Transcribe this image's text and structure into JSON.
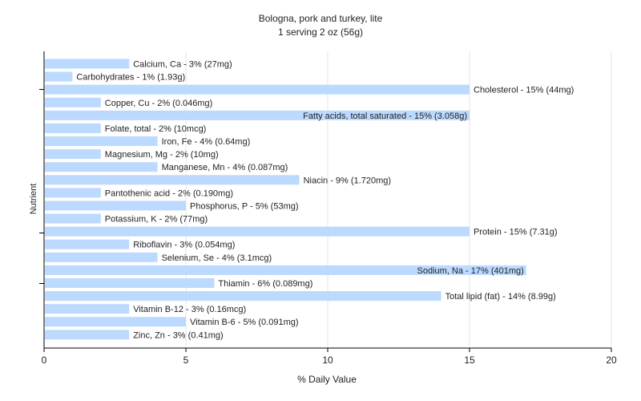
{
  "colors": {
    "bar": "#bcd9ff",
    "grid": "#e6e6e6",
    "axis": "#000000",
    "text": "#222222"
  },
  "chart_data": {
    "type": "bar",
    "orientation": "horizontal",
    "title": "Bologna, pork and turkey, lite",
    "subtitle": "1 serving 2 oz (56g)",
    "xlabel": "% Daily Value",
    "ylabel": "Nutrient",
    "xlim": [
      0,
      20
    ],
    "xticks": [
      0,
      5,
      10,
      15,
      20
    ],
    "grid": true,
    "categories": [
      "Calcium, Ca",
      "Carbohydrates",
      "Cholesterol",
      "Copper, Cu",
      "Fatty acids, total saturated",
      "Folate, total",
      "Iron, Fe",
      "Magnesium, Mg",
      "Manganese, Mn",
      "Niacin",
      "Pantothenic acid",
      "Phosphorus, P",
      "Potassium, K",
      "Protein",
      "Riboflavin",
      "Selenium, Se",
      "Sodium, Na",
      "Thiamin",
      "Total lipid (fat)",
      "Vitamin B-12",
      "Vitamin B-6",
      "Zinc, Zn"
    ],
    "values": [
      3,
      1,
      15,
      2,
      15,
      2,
      4,
      2,
      4,
      9,
      2,
      5,
      2,
      15,
      3,
      4,
      17,
      6,
      14,
      3,
      5,
      3
    ],
    "labels": [
      "Calcium, Ca - 3% (27mg)",
      "Carbohydrates - 1% (1.93g)",
      "Cholesterol - 15% (44mg)",
      "Copper, Cu - 2% (0.046mg)",
      "Fatty acids, total saturated - 15% (3.058g)",
      "Folate, total - 2% (10mcg)",
      "Iron, Fe - 4% (0.64mg)",
      "Magnesium, Mg - 2% (10mg)",
      "Manganese, Mn - 4% (0.087mg)",
      "Niacin - 9% (1.720mg)",
      "Pantothenic acid - 2% (0.190mg)",
      "Phosphorus, P - 5% (53mg)",
      "Potassium, K - 2% (77mg)",
      "Protein - 15% (7.31g)",
      "Riboflavin - 3% (0.054mg)",
      "Selenium, Se - 4% (3.1mcg)",
      "Sodium, Na - 17% (401mg)",
      "Thiamin - 6% (0.089mg)",
      "Total lipid (fat) - 14% (8.99g)",
      "Vitamin B-12 - 3% (0.16mcg)",
      "Vitamin B-6 - 5% (0.091mg)",
      "Zinc, Zn - 3% (0.41mg)"
    ]
  }
}
